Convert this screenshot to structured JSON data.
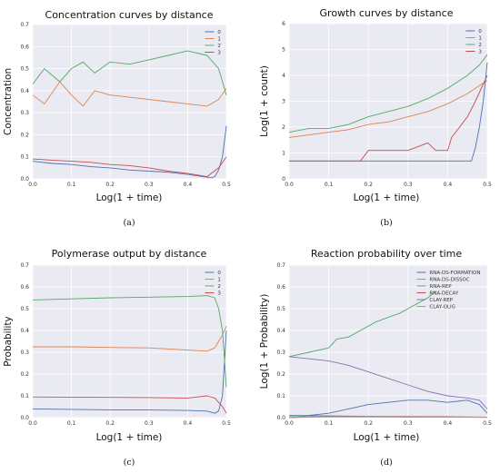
{
  "colors": {
    "plot_bg": "#eaeaf2",
    "grid": "#ffffff",
    "s0": "#4c72b0",
    "s1": "#dd8452",
    "s2": "#55a868",
    "s3": "#c44e52",
    "s4": "#8172b2",
    "s5": "#64b5cd"
  },
  "chart_data": [
    {
      "id": "a",
      "type": "line",
      "caption": "(a)",
      "title": "Concentration curves by distance",
      "xlabel": "Log(1 + time)",
      "ylabel": "Concentration",
      "xlim": [
        0,
        0.5
      ],
      "ylim": [
        0,
        0.7
      ],
      "xticks": [
        "0.0",
        "0.1",
        "0.2",
        "0.3",
        "0.4",
        "0.5"
      ],
      "yticks": [
        "0.0",
        "0.1",
        "0.2",
        "0.3",
        "0.4",
        "0.5",
        "0.6",
        "0.7"
      ],
      "legend_position": "top-right",
      "series": [
        {
          "name": "0",
          "x": [
            0,
            0.05,
            0.1,
            0.15,
            0.2,
            0.25,
            0.3,
            0.35,
            0.4,
            0.44,
            0.46,
            0.47,
            0.48,
            0.49,
            0.5
          ],
          "y": [
            0.08,
            0.07,
            0.065,
            0.055,
            0.05,
            0.04,
            0.035,
            0.03,
            0.02,
            0.01,
            0.005,
            0.01,
            0.04,
            0.1,
            0.24
          ]
        },
        {
          "name": "1",
          "x": [
            0,
            0.03,
            0.07,
            0.1,
            0.13,
            0.16,
            0.2,
            0.25,
            0.3,
            0.35,
            0.4,
            0.45,
            0.48,
            0.5
          ],
          "y": [
            0.38,
            0.34,
            0.44,
            0.38,
            0.33,
            0.4,
            0.38,
            0.37,
            0.36,
            0.35,
            0.34,
            0.33,
            0.36,
            0.41
          ]
        },
        {
          "name": "2",
          "x": [
            0,
            0.03,
            0.07,
            0.1,
            0.13,
            0.16,
            0.2,
            0.25,
            0.3,
            0.35,
            0.4,
            0.45,
            0.48,
            0.5
          ],
          "y": [
            0.43,
            0.5,
            0.44,
            0.5,
            0.53,
            0.48,
            0.53,
            0.52,
            0.54,
            0.56,
            0.58,
            0.56,
            0.5,
            0.38
          ]
        },
        {
          "name": "3",
          "x": [
            0,
            0.05,
            0.1,
            0.15,
            0.2,
            0.25,
            0.3,
            0.35,
            0.4,
            0.45,
            0.48,
            0.5
          ],
          "y": [
            0.09,
            0.085,
            0.08,
            0.075,
            0.065,
            0.06,
            0.05,
            0.035,
            0.025,
            0.01,
            0.05,
            0.1
          ]
        }
      ]
    },
    {
      "id": "b",
      "type": "line",
      "caption": "(b)",
      "title": "Growth curves by distance",
      "xlabel": "Log(1 + time)",
      "ylabel": "Log(1 + count)",
      "xlim": [
        0,
        0.5
      ],
      "ylim": [
        0,
        6
      ],
      "xticks": [
        "0.0",
        "0.1",
        "0.2",
        "0.3",
        "0.4",
        "0.5"
      ],
      "yticks": [
        "0",
        "1",
        "2",
        "3",
        "4",
        "5",
        "6"
      ],
      "legend_position": "top-right",
      "series": [
        {
          "name": "0",
          "x": [
            0,
            0.1,
            0.2,
            0.3,
            0.4,
            0.46,
            0.47,
            0.48,
            0.49,
            0.5
          ],
          "y": [
            0.69,
            0.69,
            0.69,
            0.69,
            0.69,
            0.69,
            1.2,
            2.0,
            3.0,
            4.5
          ]
        },
        {
          "name": "1",
          "x": [
            0,
            0.05,
            0.1,
            0.15,
            0.2,
            0.25,
            0.3,
            0.35,
            0.4,
            0.45,
            0.48,
            0.5
          ],
          "y": [
            1.6,
            1.7,
            1.8,
            1.9,
            2.1,
            2.2,
            2.4,
            2.6,
            2.9,
            3.3,
            3.6,
            3.8
          ]
        },
        {
          "name": "2",
          "x": [
            0,
            0.05,
            0.1,
            0.15,
            0.2,
            0.25,
            0.3,
            0.35,
            0.4,
            0.45,
            0.48,
            0.5
          ],
          "y": [
            1.8,
            1.95,
            1.95,
            2.1,
            2.4,
            2.6,
            2.8,
            3.1,
            3.5,
            4.0,
            4.4,
            4.8
          ]
        },
        {
          "name": "3",
          "x": [
            0,
            0.1,
            0.18,
            0.2,
            0.3,
            0.35,
            0.37,
            0.4,
            0.41,
            0.43,
            0.45,
            0.47,
            0.5
          ],
          "y": [
            0.69,
            0.69,
            0.69,
            1.1,
            1.1,
            1.39,
            1.1,
            1.1,
            1.6,
            2.0,
            2.4,
            3.0,
            4.0
          ]
        }
      ]
    },
    {
      "id": "c",
      "type": "line",
      "caption": "(c)",
      "title": "Polymerase output by distance",
      "xlabel": "Log(1 + time)",
      "ylabel": "Probability",
      "xlim": [
        0,
        0.5
      ],
      "ylim": [
        0,
        0.7
      ],
      "xticks": [
        "0.0",
        "0.1",
        "0.2",
        "0.3",
        "0.4",
        "0.5"
      ],
      "yticks": [
        "0.0",
        "0.1",
        "0.2",
        "0.3",
        "0.4",
        "0.5",
        "0.6",
        "0.7"
      ],
      "legend_position": "top-right",
      "series": [
        {
          "name": "0",
          "x": [
            0,
            0.1,
            0.2,
            0.3,
            0.4,
            0.45,
            0.47,
            0.48,
            0.49,
            0.5
          ],
          "y": [
            0.04,
            0.038,
            0.036,
            0.035,
            0.033,
            0.03,
            0.02,
            0.03,
            0.1,
            0.4
          ]
        },
        {
          "name": "1",
          "x": [
            0,
            0.1,
            0.2,
            0.3,
            0.4,
            0.45,
            0.47,
            0.48,
            0.49,
            0.5
          ],
          "y": [
            0.325,
            0.325,
            0.322,
            0.32,
            0.31,
            0.305,
            0.32,
            0.35,
            0.38,
            0.42
          ]
        },
        {
          "name": "2",
          "x": [
            0,
            0.1,
            0.2,
            0.3,
            0.4,
            0.45,
            0.47,
            0.48,
            0.49,
            0.5
          ],
          "y": [
            0.54,
            0.545,
            0.55,
            0.553,
            0.556,
            0.56,
            0.55,
            0.5,
            0.4,
            0.14
          ]
        },
        {
          "name": "3",
          "x": [
            0,
            0.1,
            0.2,
            0.3,
            0.4,
            0.45,
            0.47,
            0.48,
            0.49,
            0.5
          ],
          "y": [
            0.095,
            0.094,
            0.093,
            0.092,
            0.09,
            0.1,
            0.09,
            0.07,
            0.05,
            0.02
          ]
        }
      ]
    },
    {
      "id": "d",
      "type": "line",
      "caption": "(d)",
      "title": "Reaction probability over time",
      "xlabel": "Log(1 + time)",
      "ylabel": "Log(1 + Probability)",
      "xlim": [
        0,
        0.5
      ],
      "ylim": [
        0,
        0.7
      ],
      "xticks": [
        "0.0",
        "0.1",
        "0.2",
        "0.3",
        "0.4",
        "0.5"
      ],
      "yticks": [
        "0.0",
        "0.1",
        "0.2",
        "0.3",
        "0.4",
        "0.5",
        "0.6",
        "0.7"
      ],
      "legend_position": "top-right",
      "series": [
        {
          "name": "RNA-DS-FORMATION",
          "x": [
            0,
            0.05,
            0.1,
            0.15,
            0.2,
            0.25,
            0.3,
            0.35,
            0.4,
            0.45,
            0.48,
            0.5
          ],
          "y": [
            0.0,
            0.01,
            0.02,
            0.04,
            0.06,
            0.07,
            0.08,
            0.08,
            0.07,
            0.08,
            0.06,
            0.02
          ]
        },
        {
          "name": "RNA-DS-DISSOC",
          "x": [
            0,
            0.05,
            0.1,
            0.2,
            0.3,
            0.4,
            0.5
          ],
          "y": [
            0.0,
            0.002,
            0.003,
            0.003,
            0.002,
            0.002,
            0.001
          ]
        },
        {
          "name": "RNA-REP",
          "x": [
            0,
            0.05,
            0.1,
            0.12,
            0.15,
            0.18,
            0.2,
            0.22,
            0.25,
            0.28,
            0.3,
            0.32,
            0.35,
            0.37
          ],
          "y": [
            0.28,
            0.3,
            0.32,
            0.36,
            0.37,
            0.4,
            0.42,
            0.44,
            0.46,
            0.48,
            0.5,
            0.52,
            0.55,
            0.58
          ]
        },
        {
          "name": "RNA-DECAY",
          "x": [
            0,
            0.1,
            0.2,
            0.3,
            0.4,
            0.5
          ],
          "y": [
            0.01,
            0.008,
            0.006,
            0.005,
            0.004,
            0.002
          ]
        },
        {
          "name": "CLAY-REP",
          "x": [
            0,
            0.05,
            0.1,
            0.15,
            0.2,
            0.25,
            0.3,
            0.35,
            0.4,
            0.45,
            0.48,
            0.5
          ],
          "y": [
            0.28,
            0.27,
            0.26,
            0.24,
            0.21,
            0.18,
            0.15,
            0.12,
            0.1,
            0.09,
            0.08,
            0.04
          ]
        },
        {
          "name": "CLAY-OLIG",
          "x": [
            0,
            0.1,
            0.2,
            0.3,
            0.4,
            0.5
          ],
          "y": [
            0.005,
            0.004,
            0.004,
            0.003,
            0.003,
            0.002
          ]
        }
      ]
    }
  ]
}
